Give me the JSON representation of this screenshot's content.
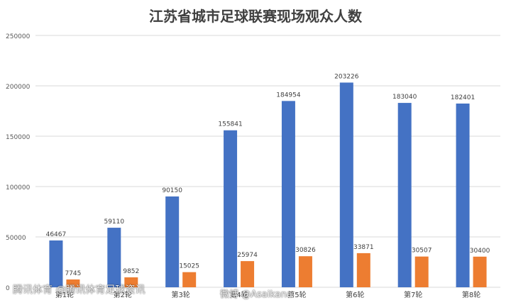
{
  "chart_data": {
    "type": "bar",
    "title": "江苏省城市足球联赛现场观众人数",
    "categories": [
      "第1轮",
      "第2轮",
      "第3轮",
      "第4轮",
      "第5轮",
      "第6轮",
      "第7轮",
      "第8轮"
    ],
    "series": [
      {
        "values": [
          46467,
          59110,
          90150,
          155841,
          184954,
          203226,
          183040,
          182401
        ],
        "color": "#4472C4"
      },
      {
        "values": [
          7745,
          9852,
          15025,
          25974,
          30826,
          33871,
          30507,
          30400
        ],
        "color": "#ED7D31"
      }
    ],
    "yticks": [
      "0",
      "50000",
      "100000",
      "150000",
      "200000",
      "250000"
    ],
    "ylim": [
      0,
      250000
    ],
    "grid": true,
    "legend": "none"
  },
  "watermarks": {
    "left": "腾讯体育 @腾讯体育足球资讯",
    "right": "微博 @Asaikana"
  }
}
